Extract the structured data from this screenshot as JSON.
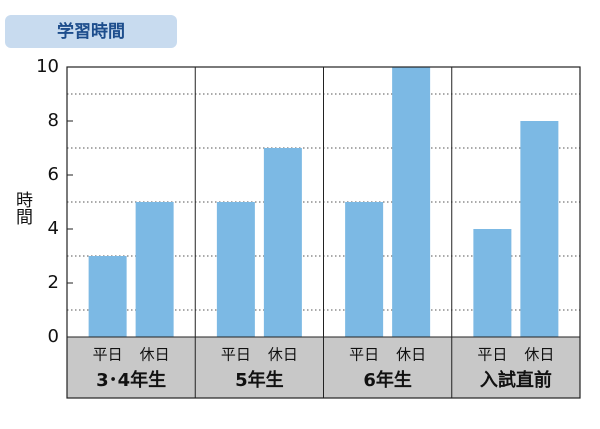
{
  "chart_data": {
    "type": "bar",
    "title": "学習時間",
    "y_label": "時間",
    "categories": [
      "3･4年生",
      "5年生",
      "6年生",
      "入試直前"
    ],
    "series": [
      {
        "name": "平日",
        "color": "#7cb9e4",
        "values": [
          3,
          5,
          5,
          4
        ]
      },
      {
        "name": "休日",
        "color": "#7cb9e4",
        "values": [
          5,
          7,
          10,
          8
        ]
      }
    ],
    "ylim": [
      0,
      10
    ],
    "yticks": [
      0,
      2,
      4,
      6,
      8,
      10
    ],
    "yminorticks": [
      1,
      3,
      5,
      7,
      9
    ],
    "grid": true
  }
}
